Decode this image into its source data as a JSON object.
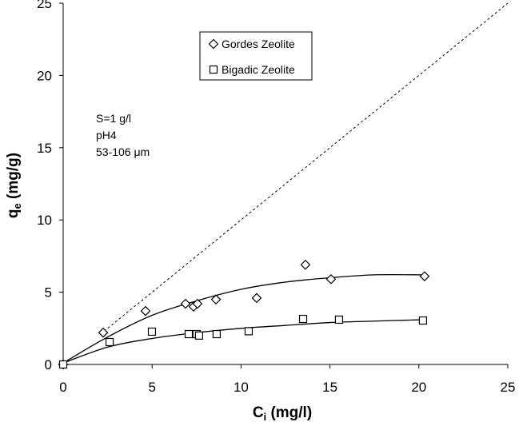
{
  "chart_data": {
    "type": "scatter",
    "x_label": [
      "C",
      "i",
      " (mg/l)"
    ],
    "y_label": [
      "q",
      "e",
      " (mg/g)"
    ],
    "xlim": [
      0,
      25
    ],
    "ylim": [
      0,
      25
    ],
    "xticks": [
      0,
      5,
      10,
      15,
      20,
      25
    ],
    "yticks": [
      0,
      5,
      10,
      15,
      20,
      25
    ],
    "legend": "upper center",
    "annotations": [
      "S=1 g/l",
      "pH4",
      "53-106 μm"
    ],
    "series": [
      {
        "name": "Gordes Zeolite",
        "color": "#000000",
        "marker": "diamond",
        "x": [
          0,
          2.25,
          4.63,
          6.88,
          7.33,
          7.55,
          8.59,
          10.88,
          13.62,
          15.06,
          20.32
        ],
        "values": [
          0,
          2.2,
          3.7,
          4.2,
          4.0,
          4.2,
          4.5,
          4.6,
          6.9,
          5.9,
          6.1
        ],
        "fit": {
          "x": [
            0,
            2.5,
            5,
            7.5,
            10,
            12.5,
            15,
            17.5,
            20.3
          ],
          "values": [
            0.1,
            1.9,
            3.4,
            4.4,
            5.2,
            5.7,
            6.0,
            6.2,
            6.2
          ]
        }
      },
      {
        "name": "Bigadic Zeolite",
        "color": "#000000",
        "marker": "square",
        "x": [
          0,
          2.61,
          4.99,
          7.06,
          7.5,
          7.64,
          8.63,
          10.43,
          13.49,
          15.51,
          20.23
        ],
        "values": [
          0,
          1.55,
          2.27,
          2.1,
          2.1,
          2.0,
          2.1,
          2.3,
          3.15,
          3.1,
          3.04
        ],
        "fit": {
          "x": [
            0,
            2.5,
            5,
            7.5,
            10,
            12.5,
            15,
            17.5,
            20.3
          ],
          "values": [
            0.1,
            1.2,
            1.8,
            2.2,
            2.5,
            2.7,
            2.9,
            3.0,
            3.1
          ]
        }
      }
    ],
    "reference_line": {
      "x": [
        2.3,
        25
      ],
      "values": [
        2.3,
        25
      ],
      "style": "dashed",
      "color": "#000000"
    }
  }
}
